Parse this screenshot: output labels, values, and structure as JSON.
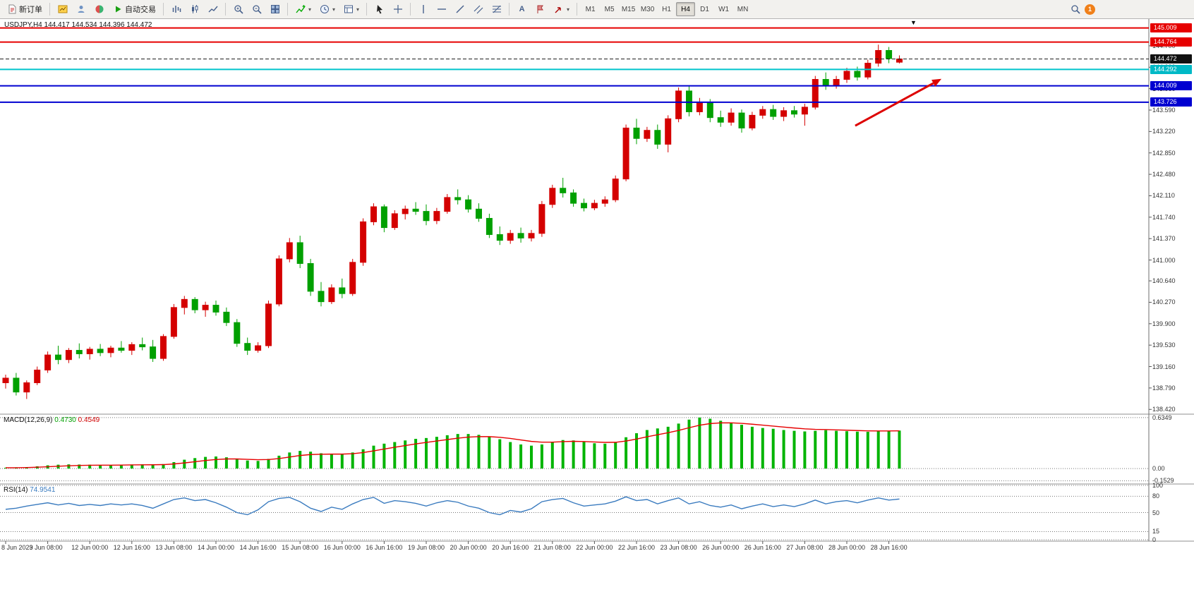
{
  "toolbar": {
    "new_order_label": "新订单",
    "auto_trading_label": "自动交易",
    "timeframes": [
      "M1",
      "M5",
      "M15",
      "M30",
      "H1",
      "H4",
      "D1",
      "W1",
      "MN"
    ],
    "active_timeframe": "H4",
    "badge_count": "1",
    "icons": [
      "new-order-icon",
      "open-chart-icon",
      "profiles-icon",
      "market-watch-icon",
      "autotrading-icon",
      "bar-chart-icon",
      "candlestick-chart-icon",
      "line-chart-icon",
      "zoom-in-icon",
      "zoom-out-icon",
      "tile-windows-icon",
      "indicators-icon",
      "periods-icon",
      "templates-icon",
      "cursor-icon",
      "crosshair-icon",
      "vertical-line-icon",
      "horizontal-line-icon",
      "trendline-icon",
      "channel-icon",
      "fibonacci-icon",
      "text-icon",
      "label-icon",
      "arrows-icon",
      "search-icon",
      "notification-badge"
    ]
  },
  "chart": {
    "symbol_period": "USDJPY,H4",
    "ohlc": "144.417 144.534 144.396 144.472"
  },
  "indicators": {
    "macd": {
      "label": "MACD(12,26,9)",
      "main_value": "0.4730",
      "signal_value": "0.4549",
      "axis_labels": [
        "0.6349",
        "0.00",
        "-0.1529"
      ]
    },
    "rsi": {
      "label": "RSI(14)",
      "value": "74.9541",
      "axis_labels": [
        "100",
        "80",
        "50",
        "15",
        "0"
      ]
    }
  },
  "price_axis": {
    "scale_labels": [
      "144.700",
      "144.330",
      "143.960",
      "143.590",
      "143.220",
      "142.850",
      "142.480",
      "142.110",
      "141.740",
      "141.370",
      "141.000",
      "140.640",
      "140.270",
      "139.900",
      "139.530",
      "139.160",
      "138.790",
      "138.420"
    ],
    "tags": [
      {
        "text": "145.009",
        "bg": "#e60000"
      },
      {
        "text": "144.764",
        "bg": "#e60000"
      },
      {
        "text": "144.472",
        "bg": "#111111"
      },
      {
        "text": "144.292",
        "bg": "#00b9c6"
      },
      {
        "text": "144.009",
        "bg": "#0000d0"
      },
      {
        "text": "143.726",
        "bg": "#0000d0"
      }
    ]
  },
  "chart_data": {
    "type": "candlestick",
    "title": "USDJPY,H4",
    "ohlc_current": {
      "open": 144.417,
      "high": 144.534,
      "low": 144.396,
      "close": 144.472
    },
    "price_range": [
      138.35,
      145.15
    ],
    "colors": {
      "bull": "#d40000",
      "bear": "#00a000",
      "macd_hist": "#00b400",
      "macd_signal": "#e60000",
      "rsi": "#3a7bbf"
    },
    "hlines": [
      {
        "price": 145.009,
        "color": "#e60000",
        "width": 2,
        "style": "solid"
      },
      {
        "price": 144.764,
        "color": "#e60000",
        "width": 2,
        "style": "solid"
      },
      {
        "price": 144.472,
        "color": "#1a1a1a",
        "width": 1,
        "style": "dash"
      },
      {
        "price": 144.292,
        "color": "#00c4cc",
        "width": 2,
        "style": "solid"
      },
      {
        "price": 144.009,
        "color": "#0000d0",
        "width": 2,
        "style": "solid"
      },
      {
        "price": 143.726,
        "color": "#0000d0",
        "width": 2,
        "style": "solid"
      }
    ],
    "arrow": {
      "i1": 80.8,
      "p1": 143.32,
      "i2": 89.0,
      "p2": 144.13,
      "color": "#dd0000"
    },
    "candles": [
      [
        138.88,
        139.02,
        138.78,
        138.96
      ],
      [
        138.96,
        139.05,
        138.66,
        138.72
      ],
      [
        138.72,
        138.92,
        138.6,
        138.88
      ],
      [
        138.88,
        139.16,
        138.84,
        139.1
      ],
      [
        139.1,
        139.42,
        139.05,
        139.36
      ],
      [
        139.36,
        139.52,
        139.2,
        139.28
      ],
      [
        139.28,
        139.48,
        139.22,
        139.44
      ],
      [
        139.44,
        139.56,
        139.3,
        139.38
      ],
      [
        139.38,
        139.5,
        139.28,
        139.46
      ],
      [
        139.46,
        139.55,
        139.34,
        139.4
      ],
      [
        139.4,
        139.52,
        139.32,
        139.48
      ],
      [
        139.48,
        139.6,
        139.4,
        139.44
      ],
      [
        139.44,
        139.58,
        139.36,
        139.54
      ],
      [
        139.54,
        139.66,
        139.44,
        139.5
      ],
      [
        139.5,
        139.62,
        139.24,
        139.3
      ],
      [
        139.3,
        139.72,
        139.26,
        139.68
      ],
      [
        139.68,
        140.24,
        139.64,
        140.18
      ],
      [
        140.18,
        140.38,
        140.06,
        140.32
      ],
      [
        140.32,
        140.36,
        140.08,
        140.14
      ],
      [
        140.14,
        140.28,
        140.02,
        140.22
      ],
      [
        140.22,
        140.3,
        140.04,
        140.1
      ],
      [
        140.1,
        140.18,
        139.86,
        139.92
      ],
      [
        139.92,
        139.98,
        139.5,
        139.56
      ],
      [
        139.56,
        139.66,
        139.36,
        139.44
      ],
      [
        139.44,
        139.58,
        139.4,
        139.52
      ],
      [
        139.52,
        140.3,
        139.48,
        140.24
      ],
      [
        140.24,
        141.08,
        140.2,
        141.02
      ],
      [
        141.02,
        141.38,
        140.96,
        141.3
      ],
      [
        141.3,
        141.42,
        140.86,
        140.94
      ],
      [
        140.94,
        141.02,
        140.38,
        140.46
      ],
      [
        140.46,
        140.62,
        140.2,
        140.28
      ],
      [
        140.28,
        140.58,
        140.24,
        140.52
      ],
      [
        140.52,
        140.68,
        140.34,
        140.42
      ],
      [
        140.42,
        141.02,
        140.38,
        140.96
      ],
      [
        140.96,
        141.72,
        140.9,
        141.66
      ],
      [
        141.66,
        141.98,
        141.6,
        141.92
      ],
      [
        141.92,
        141.96,
        141.48,
        141.56
      ],
      [
        141.56,
        141.86,
        141.52,
        141.8
      ],
      [
        141.8,
        141.94,
        141.7,
        141.88
      ],
      [
        141.88,
        142.0,
        141.78,
        141.84
      ],
      [
        141.84,
        141.96,
        141.6,
        141.68
      ],
      [
        141.68,
        141.9,
        141.62,
        141.84
      ],
      [
        141.84,
        142.14,
        141.8,
        142.08
      ],
      [
        142.08,
        142.22,
        141.96,
        142.04
      ],
      [
        142.04,
        142.12,
        141.82,
        141.88
      ],
      [
        141.88,
        141.98,
        141.66,
        141.72
      ],
      [
        141.72,
        141.8,
        141.38,
        141.44
      ],
      [
        141.44,
        141.58,
        141.26,
        141.34
      ],
      [
        141.34,
        141.52,
        141.28,
        141.46
      ],
      [
        141.46,
        141.56,
        141.3,
        141.38
      ],
      [
        141.38,
        141.52,
        141.32,
        141.46
      ],
      [
        141.46,
        142.02,
        141.4,
        141.96
      ],
      [
        141.96,
        142.3,
        141.9,
        142.24
      ],
      [
        142.24,
        142.42,
        142.08,
        142.16
      ],
      [
        142.16,
        142.22,
        141.92,
        141.98
      ],
      [
        141.98,
        142.06,
        141.84,
        141.9
      ],
      [
        141.9,
        142.04,
        141.86,
        141.98
      ],
      [
        141.98,
        142.1,
        141.92,
        142.04
      ],
      [
        142.04,
        142.46,
        142.0,
        142.4
      ],
      [
        142.4,
        143.34,
        142.36,
        143.28
      ],
      [
        143.28,
        143.44,
        143.0,
        143.1
      ],
      [
        143.1,
        143.3,
        143.04,
        143.24
      ],
      [
        143.24,
        143.34,
        142.92,
        143.0
      ],
      [
        143.0,
        143.5,
        142.86,
        143.44
      ],
      [
        143.44,
        143.98,
        143.38,
        143.92
      ],
      [
        143.92,
        144.0,
        143.48,
        143.56
      ],
      [
        143.56,
        143.8,
        143.5,
        143.72
      ],
      [
        143.72,
        143.78,
        143.38,
        143.46
      ],
      [
        143.46,
        143.58,
        143.3,
        143.38
      ],
      [
        143.38,
        143.62,
        143.32,
        143.54
      ],
      [
        143.54,
        143.6,
        143.2,
        143.28
      ],
      [
        143.28,
        143.56,
        143.24,
        143.5
      ],
      [
        143.5,
        143.66,
        143.44,
        143.6
      ],
      [
        143.6,
        143.68,
        143.42,
        143.48
      ],
      [
        143.48,
        143.64,
        143.4,
        143.58
      ],
      [
        143.58,
        143.66,
        143.46,
        143.52
      ],
      [
        143.52,
        143.7,
        143.32,
        143.64
      ],
      [
        143.64,
        144.18,
        143.6,
        144.12
      ],
      [
        144.12,
        144.24,
        143.94,
        144.02
      ],
      [
        144.02,
        144.18,
        143.96,
        144.12
      ],
      [
        144.12,
        144.32,
        144.06,
        144.26
      ],
      [
        144.26,
        144.34,
        144.1,
        144.16
      ],
      [
        144.16,
        144.46,
        144.12,
        144.4
      ],
      [
        144.4,
        144.72,
        144.34,
        144.62
      ],
      [
        144.62,
        144.68,
        144.4,
        144.48
      ],
      [
        144.417,
        144.534,
        144.396,
        144.472
      ]
    ],
    "macd_hist": [
      0.01,
      0.012,
      0.018,
      0.028,
      0.04,
      0.048,
      0.052,
      0.05,
      0.048,
      0.045,
      0.044,
      0.046,
      0.05,
      0.052,
      0.048,
      0.055,
      0.08,
      0.11,
      0.13,
      0.145,
      0.15,
      0.14,
      0.12,
      0.1,
      0.095,
      0.12,
      0.16,
      0.2,
      0.22,
      0.21,
      0.19,
      0.185,
      0.18,
      0.2,
      0.24,
      0.285,
      0.31,
      0.33,
      0.35,
      0.37,
      0.38,
      0.395,
      0.415,
      0.43,
      0.43,
      0.42,
      0.395,
      0.365,
      0.33,
      0.3,
      0.285,
      0.3,
      0.33,
      0.355,
      0.35,
      0.33,
      0.315,
      0.31,
      0.33,
      0.39,
      0.44,
      0.48,
      0.5,
      0.52,
      0.56,
      0.61,
      0.635,
      0.62,
      0.595,
      0.57,
      0.545,
      0.52,
      0.505,
      0.495,
      0.48,
      0.47,
      0.462,
      0.47,
      0.478,
      0.47,
      0.465,
      0.46,
      0.458,
      0.465,
      0.47,
      0.473
    ],
    "rsi": [
      56,
      58,
      62,
      65,
      68,
      64,
      67,
      63,
      65,
      63,
      66,
      64,
      66,
      63,
      58,
      66,
      74,
      77,
      72,
      74,
      68,
      60,
      50,
      46,
      55,
      70,
      76,
      78,
      70,
      58,
      52,
      60,
      56,
      66,
      74,
      78,
      67,
      72,
      70,
      67,
      62,
      68,
      72,
      69,
      62,
      58,
      50,
      46,
      54,
      51,
      57,
      70,
      74,
      76,
      68,
      62,
      64,
      66,
      71,
      79,
      72,
      74,
      66,
      72,
      77,
      66,
      70,
      63,
      60,
      64,
      57,
      62,
      66,
      61,
      64,
      61,
      66,
      73,
      66,
      70,
      72,
      68,
      73,
      77,
      73,
      74.95
    ],
    "time_labels": [
      [
        0,
        "8 Jun 2023"
      ],
      [
        4,
        "9 Jun 08:00"
      ],
      [
        8,
        "12 Jun 00:00"
      ],
      [
        12,
        "12 Jun 16:00"
      ],
      [
        16,
        "13 Jun 08:00"
      ],
      [
        20,
        "14 Jun 00:00"
      ],
      [
        24,
        "14 Jun 16:00"
      ],
      [
        28,
        "15 Jun 08:00"
      ],
      [
        32,
        "16 Jun 00:00"
      ],
      [
        36,
        "16 Jun 16:00"
      ],
      [
        40,
        "19 Jun 08:00"
      ],
      [
        44,
        "20 Jun 00:00"
      ],
      [
        48,
        "20 Jun 16:00"
      ],
      [
        52,
        "21 Jun 08:00"
      ],
      [
        56,
        "22 Jun 00:00"
      ],
      [
        60,
        "22 Jun 16:00"
      ],
      [
        64,
        "23 Jun 08:00"
      ],
      [
        68,
        "26 Jun 00:00"
      ],
      [
        72,
        "26 Jun 16:00"
      ],
      [
        76,
        "27 Jun 08:00"
      ],
      [
        80,
        "28 Jun 00:00"
      ],
      [
        84,
        "28 Jun 16:00"
      ]
    ]
  }
}
